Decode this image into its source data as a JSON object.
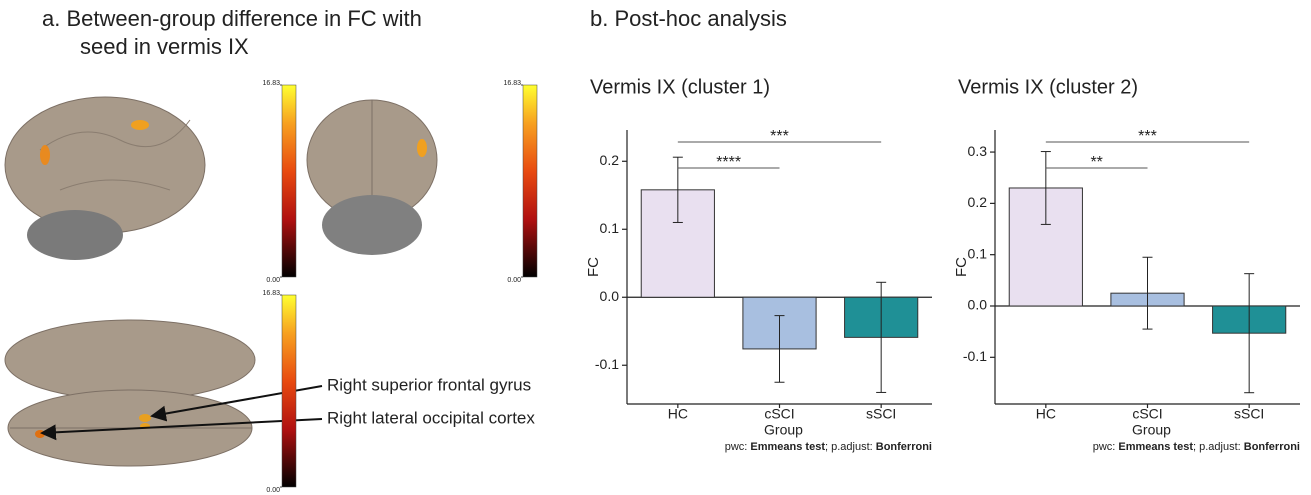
{
  "panel_a": {
    "title_lines": [
      "a.  Between-group difference in FC with",
      "seed in vermis IX"
    ],
    "annotations": [
      "Right superior frontal gyrus",
      "Right lateral occipital cortex"
    ],
    "colorbars": [
      {
        "lim": [
          0,
          16.83
        ],
        "ticks": [
          {
            "value": 0,
            "label": "0.00"
          },
          16.83
        ]
      },
      {
        "lim": [
          0,
          16.83
        ],
        "ticks": [
          {
            "value": 0,
            "label": "0.00"
          },
          16.83
        ]
      },
      {
        "lim": [
          0,
          16.83
        ],
        "ticks": [
          {
            "value": 0,
            "label": "0.00"
          },
          16.83
        ]
      }
    ]
  },
  "panel_b": {
    "title": "b. Post-hoc analysis"
  },
  "chart_data": [
    {
      "type": "bar",
      "title": "Vermis IX (cluster 1)",
      "xlabel": "Group",
      "ylabel": "FC",
      "categories": [
        "HC",
        "cSCI",
        "sSCI"
      ],
      "values": [
        0.158,
        -0.076,
        -0.059
      ],
      "errors": [
        0.048,
        0.049,
        0.081
      ],
      "colors": [
        "#e9e0f0",
        "#a8bfe0",
        "#1f9096"
      ],
      "ylim": [
        -0.157,
        0.246
      ],
      "yticks": [
        -0.1,
        {
          "value": 0,
          "label": "0.0"
        },
        0.1,
        0.2
      ],
      "significance": [
        {
          "from": 0,
          "to": 1,
          "label": "****"
        },
        {
          "from": 0,
          "to": 2,
          "label": "***"
        }
      ],
      "note": [
        "pwc: ",
        "Emmeans test",
        "; p.adjust: ",
        "Bonferroni"
      ]
    },
    {
      "type": "bar",
      "title": "Vermis IX (cluster 2)",
      "xlabel": "Group",
      "ylabel": "FC",
      "categories": [
        "HC",
        "cSCI",
        "sSCI"
      ],
      "values": [
        0.23,
        0.025,
        -0.053
      ],
      "errors": [
        0.071,
        0.07,
        0.116
      ],
      "colors": [
        "#e9e0f0",
        "#a8bfe0",
        "#1f9096"
      ],
      "ylim": [
        -0.191,
        0.343
      ],
      "yticks": [
        -0.1,
        {
          "value": 0,
          "label": "0.0"
        },
        0.1,
        0.2,
        0.3
      ],
      "significance": [
        {
          "from": 0,
          "to": 1,
          "label": "**"
        },
        {
          "from": 0,
          "to": 2,
          "label": "***"
        }
      ],
      "note": [
        "pwc: ",
        "Emmeans test",
        "; p.adjust: ",
        "Bonferroni"
      ]
    }
  ]
}
